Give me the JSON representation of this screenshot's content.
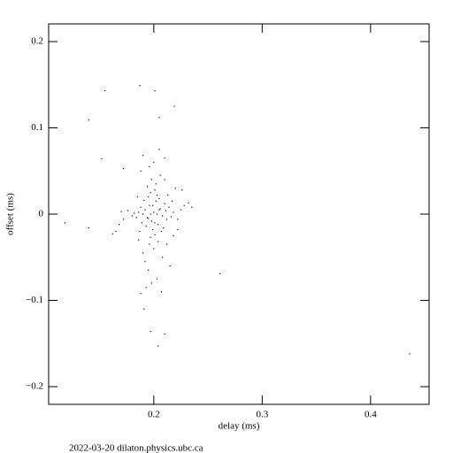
{
  "chart_data": {
    "type": "scatter",
    "xlabel": "delay (ms)",
    "ylabel": "offset (ms)",
    "footer": "2022-03-20  dilaton.physics.ubc.ca",
    "xlim": [
      0.103,
      0.454
    ],
    "ylim": [
      -0.2205,
      0.2205
    ],
    "xticks": [
      0.2,
      0.3,
      0.4
    ],
    "yticks": [
      0.2,
      0.1,
      0,
      {
        "value": -0.1,
        "label": "−0.1"
      },
      {
        "value": -0.2,
        "label": "−0.2"
      }
    ],
    "color": "#000000",
    "x": [
      0.118,
      0.14,
      0.14,
      0.155,
      0.152,
      0.187,
      0.201,
      0.219,
      0.261,
      0.436,
      0.191,
      0.197,
      0.21,
      0.204,
      0.205,
      0.172,
      0.19,
      0.192,
      0.194,
      0.196,
      0.198,
      0.2,
      0.202,
      0.204,
      0.206,
      0.208,
      0.21,
      0.212,
      0.195,
      0.199,
      0.203,
      0.207,
      0.191,
      0.193,
      0.197,
      0.201,
      0.205,
      0.209,
      0.211,
      0.189,
      0.188,
      0.186,
      0.184,
      0.182,
      0.214,
      0.216,
      0.218,
      0.222,
      0.225,
      0.228,
      0.232,
      0.235,
      0.18,
      0.176,
      0.172,
      0.168,
      0.165,
      0.162,
      0.17,
      0.194,
      0.198,
      0.202,
      0.206,
      0.196,
      0.2,
      0.204,
      0.19,
      0.192,
      0.208,
      0.215,
      0.186,
      0.188,
      0.196,
      0.2,
      0.21,
      0.22,
      0.226,
      0.218,
      0.222,
      0.212,
      0.19,
      0.205,
      0.21,
      0.195,
      0.198,
      0.203,
      0.207,
      0.188,
      0.193,
      0.201,
      0.197,
      0.185,
      0.187,
      0.213,
      0.217,
      0.199,
      0.201,
      0.203,
      0.197,
      0.195,
      0.205
    ],
    "y": [
      -0.01,
      -0.016,
      0.109,
      0.143,
      0.064,
      0.149,
      0.143,
      0.125,
      -0.069,
      -0.162,
      -0.11,
      -0.136,
      -0.139,
      -0.153,
      0.112,
      0.053,
      0.0,
      0.005,
      -0.004,
      0.01,
      -0.008,
      0.002,
      0.015,
      -0.012,
      0.006,
      -0.002,
      0.012,
      -0.006,
      0.02,
      -0.018,
      0.022,
      -0.02,
      0.016,
      -0.014,
      0.025,
      -0.024,
      0.018,
      -0.016,
      0.004,
      -0.01,
      0.008,
      0.002,
      -0.004,
      0.001,
      0.008,
      -0.003,
      0.002,
      -0.006,
      0.005,
      0.01,
      0.013,
      0.008,
      -0.002,
      0.004,
      -0.006,
      -0.012,
      -0.02,
      -0.023,
      0.003,
      0.032,
      0.04,
      0.035,
      0.045,
      -0.035,
      -0.04,
      -0.032,
      -0.045,
      -0.055,
      -0.05,
      -0.06,
      -0.03,
      0.05,
      0.055,
      0.06,
      0.04,
      0.03,
      0.028,
      -0.025,
      -0.018,
      -0.035,
      0.068,
      0.075,
      0.065,
      -0.065,
      -0.08,
      -0.075,
      -0.09,
      -0.092,
      -0.085,
      0.028,
      -0.027,
      0.02,
      -0.02,
      0.022,
      0.015,
      0.01,
      -0.01,
      0.0,
      0.0,
      -0.005,
      0.005
    ]
  }
}
